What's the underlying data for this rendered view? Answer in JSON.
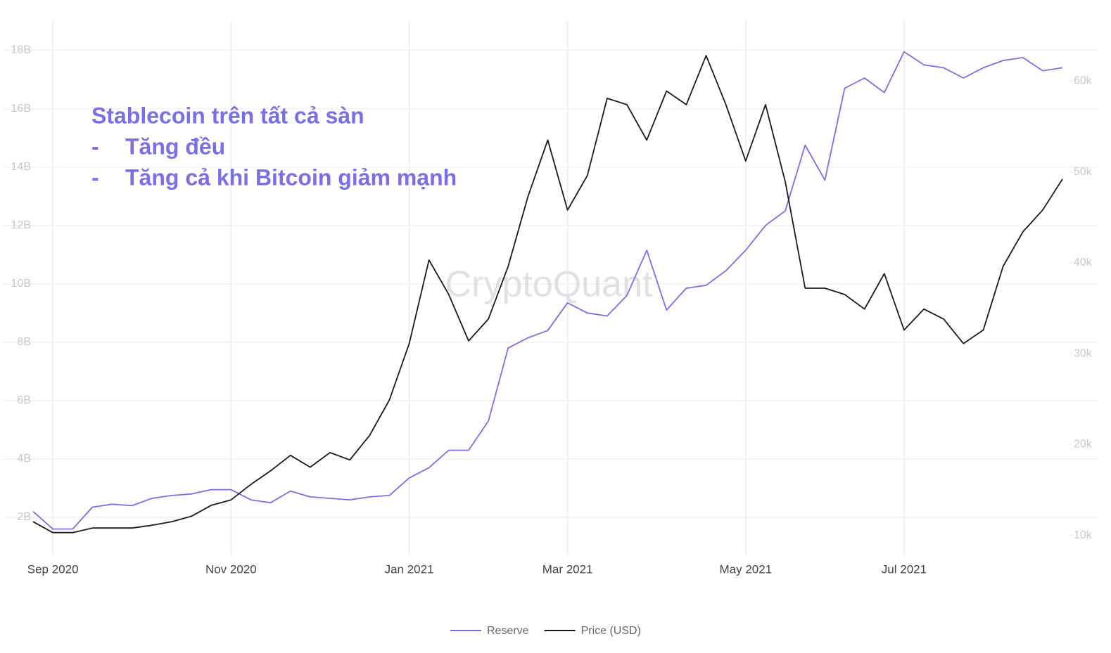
{
  "chart_data": {
    "type": "line",
    "watermark": "CryptoQuant",
    "annotation": {
      "title": "Stablecoin trên tất cả sàn",
      "bullet": "-",
      "items": [
        "Tăng đều",
        "Tăng cả khi Bitcoin giảm mạnh"
      ]
    },
    "categories": [
      null,
      "Sep 2020",
      null,
      null,
      null,
      null,
      null,
      null,
      null,
      null,
      "Nov 2020",
      null,
      null,
      null,
      null,
      null,
      null,
      null,
      null,
      "Jan 2021",
      null,
      null,
      null,
      null,
      null,
      null,
      null,
      "Mar 2021",
      null,
      null,
      null,
      null,
      null,
      null,
      null,
      null,
      "May 2021",
      null,
      null,
      null,
      null,
      null,
      null,
      null,
      "Jul 2021",
      null,
      null,
      null,
      null,
      null,
      null,
      null,
      null
    ],
    "series": [
      {
        "name": "Reserve",
        "color": "#7b6fe8",
        "axis": "y",
        "values": [
          2200000000,
          1600000000,
          1600000000,
          2350000000,
          2450000000,
          2400000000,
          2650000000,
          2750000000,
          2800000000,
          2950000000,
          2950000000,
          2600000000,
          2500000000,
          2900000000,
          2700000000,
          2650000000,
          2600000000,
          2700000000,
          2750000000,
          3350000000,
          3700000000,
          4300000000,
          4300000000,
          5300000000,
          7800000000,
          8150000000,
          8400000000,
          9350000000,
          9000000000,
          8900000000,
          9600000000,
          11150000000,
          9100000000,
          9850000000,
          9950000000,
          10450000000,
          11150000000,
          12000000000,
          12500000000,
          14750000000,
          13550000000,
          16700000000,
          17050000000,
          16550000000,
          17950000000,
          17500000000,
          17400000000,
          17050000000,
          17400000000,
          17650000000,
          17750000000,
          17300000000,
          17400000000
        ]
      },
      {
        "name": "Price (USD)",
        "color": "#1a1a1a",
        "axis": "y2",
        "values": [
          11500,
          10300,
          10300,
          10800,
          10800,
          10800,
          11100,
          11500,
          12100,
          13300,
          13900,
          15600,
          17100,
          18800,
          17500,
          19100,
          18300,
          21000,
          24900,
          31100,
          40300,
          36500,
          31400,
          33800,
          39600,
          47300,
          53500,
          45800,
          49600,
          58100,
          57400,
          53500,
          58900,
          57400,
          62800,
          57400,
          51200,
          57400,
          48900,
          37200,
          37200,
          36500,
          34900,
          38800,
          32600,
          34900,
          33800,
          31100,
          32600,
          39600,
          43400,
          45800,
          49200
        ]
      }
    ],
    "ylim": [
      700000000,
      19000000000
    ],
    "yticks": [
      {
        "value": 2000000000,
        "label": "2B"
      },
      {
        "value": 4000000000,
        "label": "4B"
      },
      {
        "value": 6000000000,
        "label": "6B"
      },
      {
        "value": 8000000000,
        "label": "8B"
      },
      {
        "value": 10000000000,
        "label": "10B"
      },
      {
        "value": 12000000000,
        "label": "12B"
      },
      {
        "value": 14000000000,
        "label": "14B"
      },
      {
        "value": 16000000000,
        "label": "16B"
      },
      {
        "value": 18000000000,
        "label": "18B"
      }
    ],
    "y2lim": [
      7800,
      66600
    ],
    "y2ticks": [
      {
        "value": 10000,
        "label": "10k"
      },
      {
        "value": 20000,
        "label": "20k"
      },
      {
        "value": 30000,
        "label": "30k"
      },
      {
        "value": 40000,
        "label": "40k"
      },
      {
        "value": 50000,
        "label": "50k"
      },
      {
        "value": 60000,
        "label": "60k"
      }
    ],
    "grid": true,
    "legend": "bottom"
  }
}
